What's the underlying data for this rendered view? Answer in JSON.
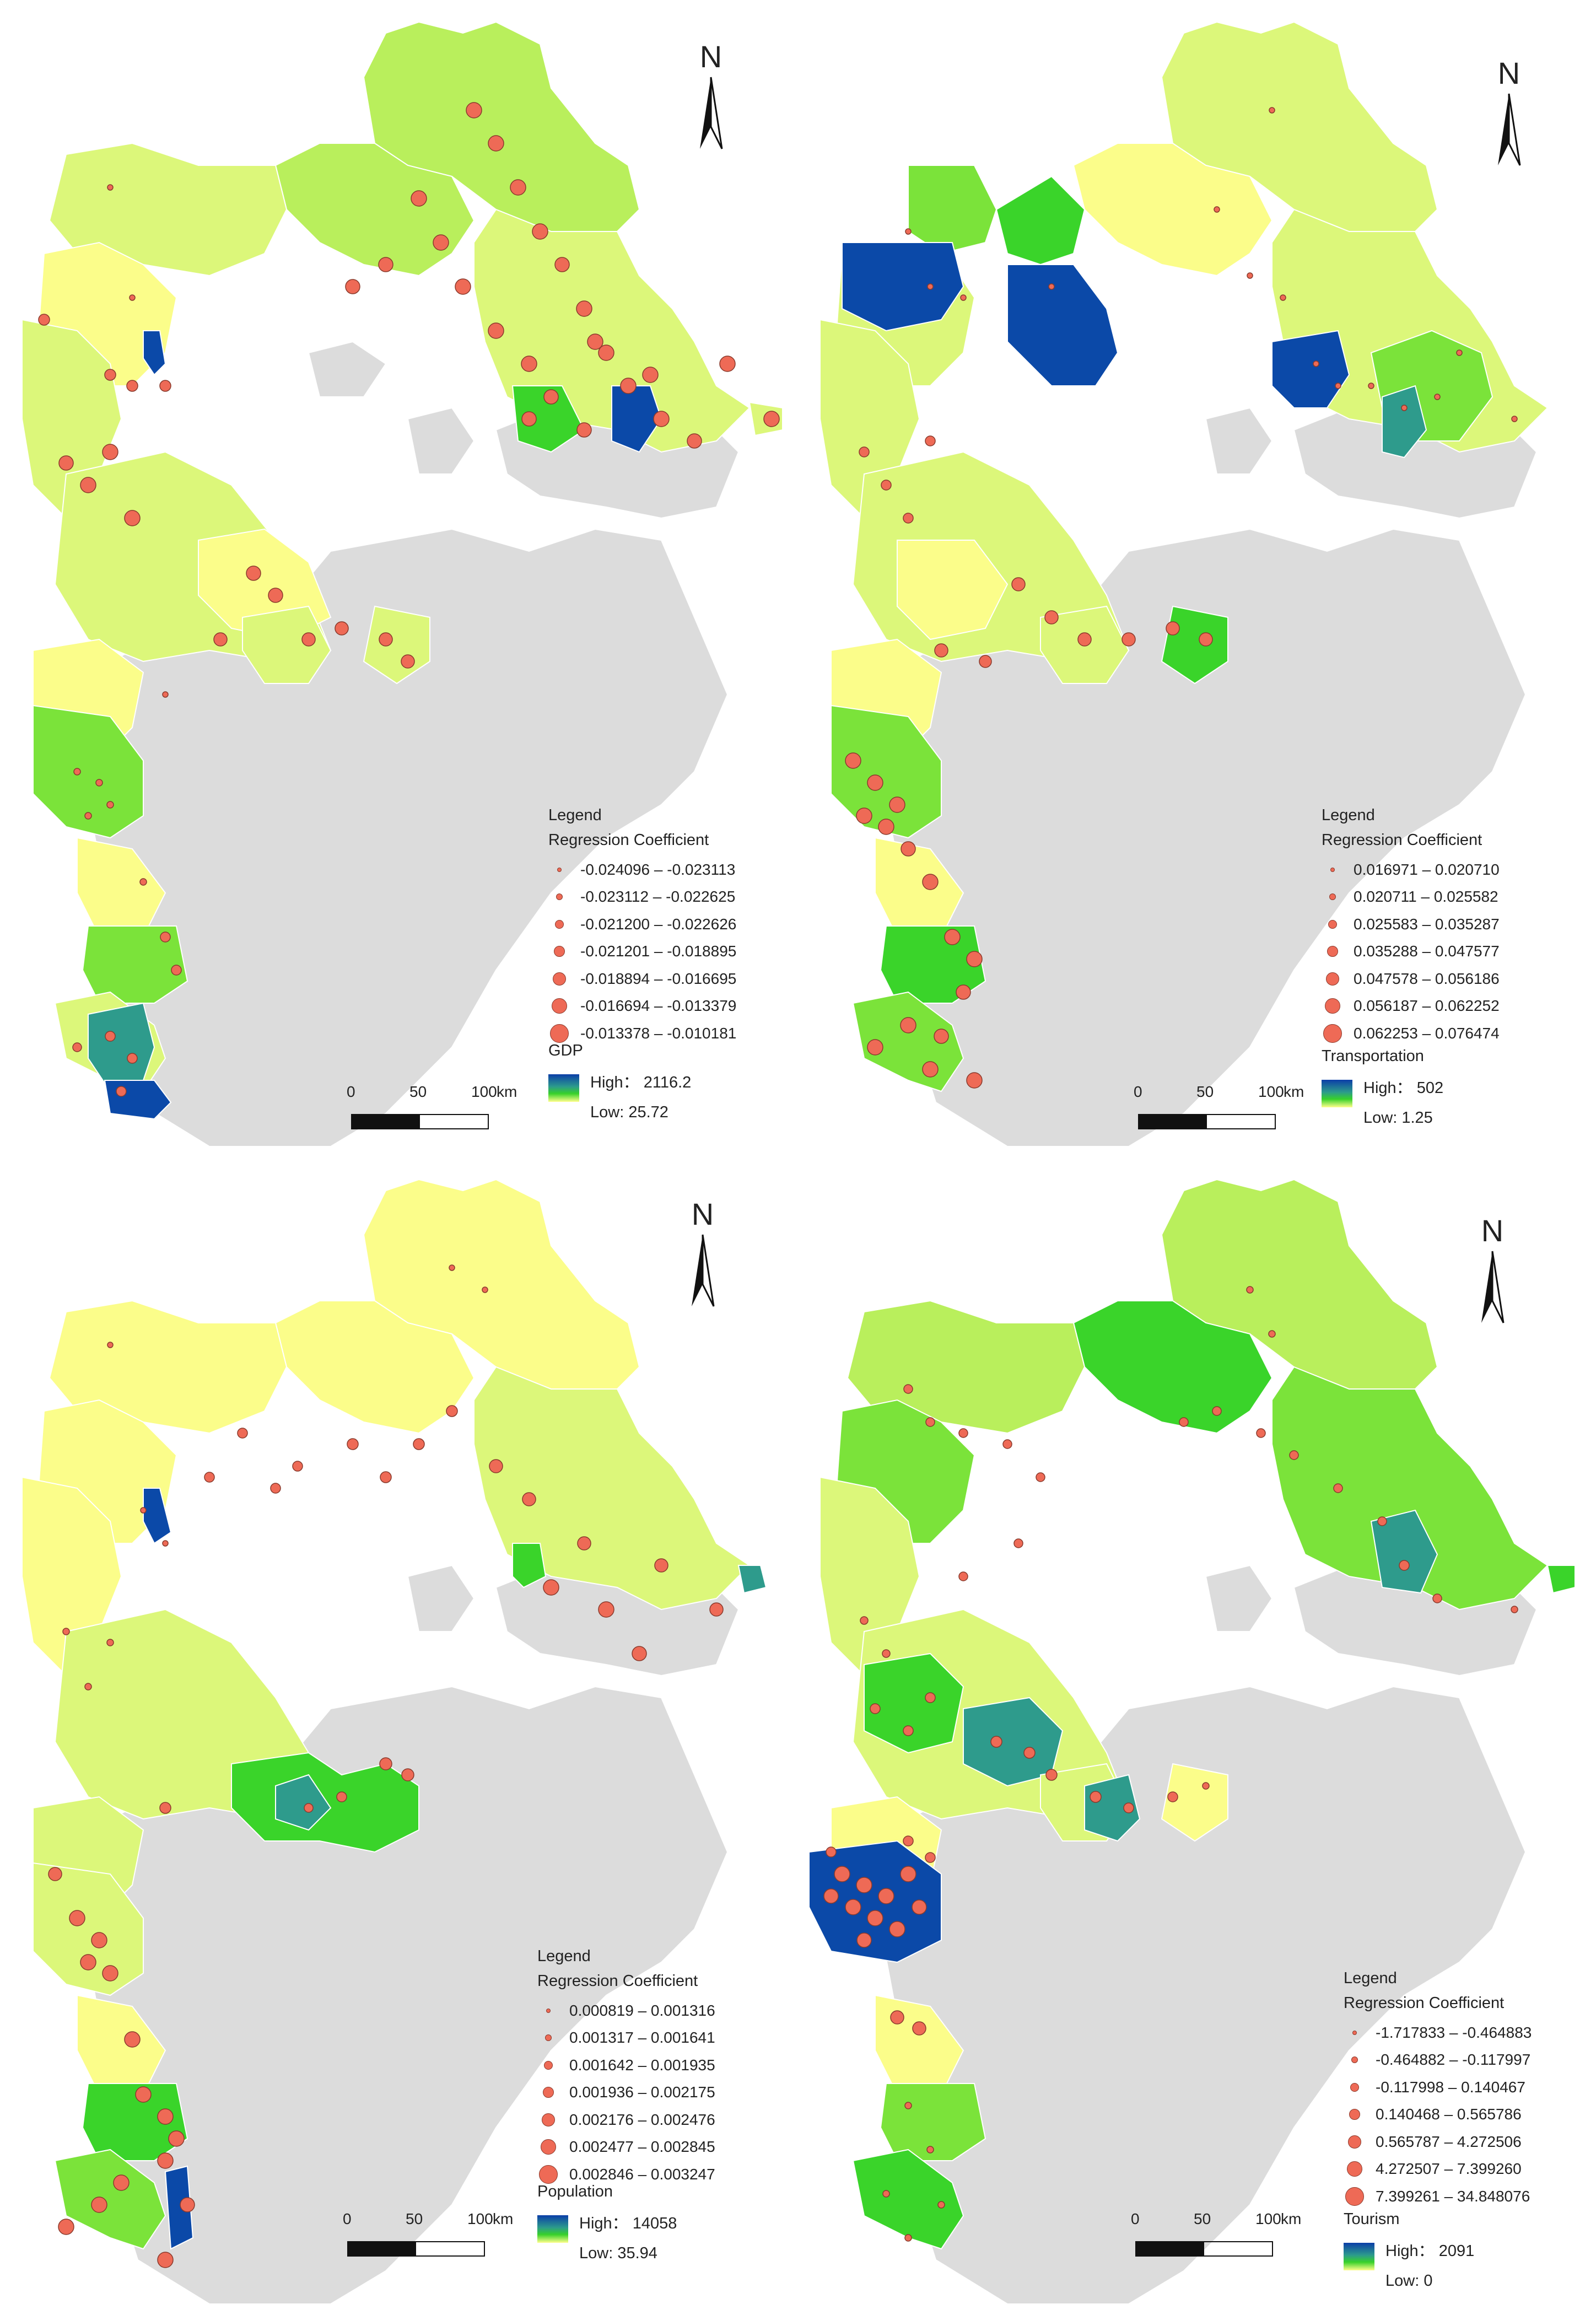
{
  "panels": [
    {
      "id": "gdp",
      "legend_title": "Legend",
      "legend_subtitle": "Regression Coefficient",
      "classes": [
        "-0.024096 – -0.023113",
        "-0.023112 – -0.022625",
        "-0.021200 – -0.022626",
        "-0.021201 – -0.018895",
        "-0.018894 – -0.016695",
        "-0.016694 – -0.013379",
        "-0.013378 – -0.010181"
      ],
      "ramp_title": "GDP",
      "high_label": "High：",
      "high_value": "2116.2",
      "low_label": "Low:",
      "low_value": "25.72",
      "scale": [
        "0",
        "50",
        "100",
        "km"
      ],
      "north": "N"
    },
    {
      "id": "transportation",
      "legend_title": "Legend",
      "legend_subtitle": "Regression Coefficient",
      "classes": [
        "0.016971 – 0.020710",
        "0.020711 – 0.025582",
        "0.025583 – 0.035287",
        "0.035288 – 0.047577",
        "0.047578 – 0.056186",
        "0.056187 – 0.062252",
        "0.062253 – 0.076474"
      ],
      "ramp_title": "Transportation",
      "high_label": "High：",
      "high_value": "502",
      "low_label": "Low:",
      "low_value": "1.25",
      "scale": [
        "0",
        "50",
        "100",
        "km"
      ],
      "north": "N"
    },
    {
      "id": "population",
      "legend_title": "Legend",
      "legend_subtitle": "Regression Coefficient",
      "classes": [
        "0.000819 – 0.001316",
        "0.001317 – 0.001641",
        "0.001642 – 0.001935",
        "0.001936 – 0.002175",
        "0.002176 – 0.002476",
        "0.002477 – 0.002845",
        "0.002846 – 0.003247"
      ],
      "ramp_title": "Population",
      "high_label": "High：",
      "high_value": "14058",
      "low_label": "Low:",
      "low_value": "35.94",
      "scale": [
        "0",
        "50",
        "100",
        "km"
      ],
      "north": "N"
    },
    {
      "id": "tourism",
      "legend_title": "Legend",
      "legend_subtitle": "Regression Coefficient",
      "classes": [
        "-1.717833 – -0.464883",
        "-0.464882 – -0.117997",
        "-0.117998 – 0.140467",
        "0.140468 – 0.565786",
        "0.565787 – 4.272506",
        "4.272507 – 7.399260",
        "7.399261 – 34.848076"
      ],
      "ramp_title": "Tourism",
      "high_label": "High：",
      "high_value": "2091",
      "low_label": "Low:",
      "low_value": "0",
      "scale": [
        "0",
        "50",
        "100",
        "km"
      ],
      "north": "N"
    }
  ],
  "colors": {
    "region_gray": "#dcdcdc",
    "yellow": "#fbfd8a",
    "yellow_green": "#dcf77a",
    "light_green": "#b9ef5c",
    "green": "#7be33a",
    "bright_green": "#3ad42a",
    "teal": "#2e9b8c",
    "dark_blue": "#0b49a8",
    "dot_fill": "#ee6a56",
    "dot_stroke": "#8a3a2c"
  }
}
